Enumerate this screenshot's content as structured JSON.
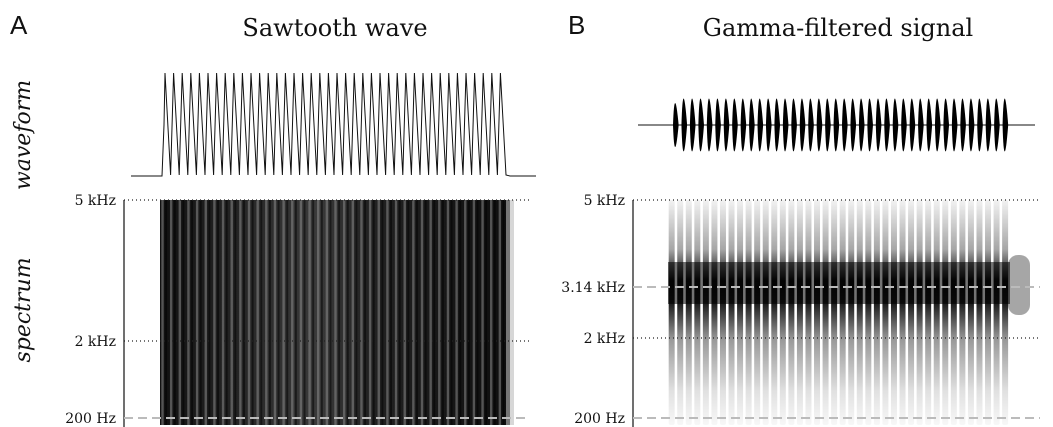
{
  "row_labels": {
    "waveform": "waveform",
    "spectrum": "spectrum"
  },
  "panels": [
    {
      "letter": "A",
      "title": "Sawtooth wave",
      "waveform": {
        "type": "sawtooth",
        "cycles": 40
      },
      "spectrum": {
        "type": "broadband",
        "bands": 40,
        "frequency_ticks": [
          {
            "label": "5 kHz",
            "kind": "dotted",
            "value_hz": 5000
          },
          {
            "label": "2 kHz",
            "kind": "dotted",
            "value_hz": 2000
          },
          {
            "label": "200 Hz",
            "kind": "dashed",
            "value_hz": 200
          }
        ]
      }
    },
    {
      "letter": "B",
      "title": "Gamma-filtered signal",
      "waveform": {
        "type": "gammatone-bursts",
        "cycles": 40
      },
      "spectrum": {
        "type": "filtered",
        "bands": 40,
        "center_hz": 3140,
        "frequency_ticks": [
          {
            "label": "5 kHz",
            "kind": "dotted",
            "value_hz": 5000
          },
          {
            "label": "3.14 kHz",
            "kind": "dashed",
            "value_hz": 3140
          },
          {
            "label": "2 kHz",
            "kind": "dotted",
            "value_hz": 2000
          },
          {
            "label": "200 Hz",
            "kind": "dashed",
            "value_hz": 200
          }
        ]
      }
    }
  ],
  "colors": {
    "ink": "#111111",
    "dashed_line": "#bbbbbb",
    "dotted_line": "#222222"
  }
}
